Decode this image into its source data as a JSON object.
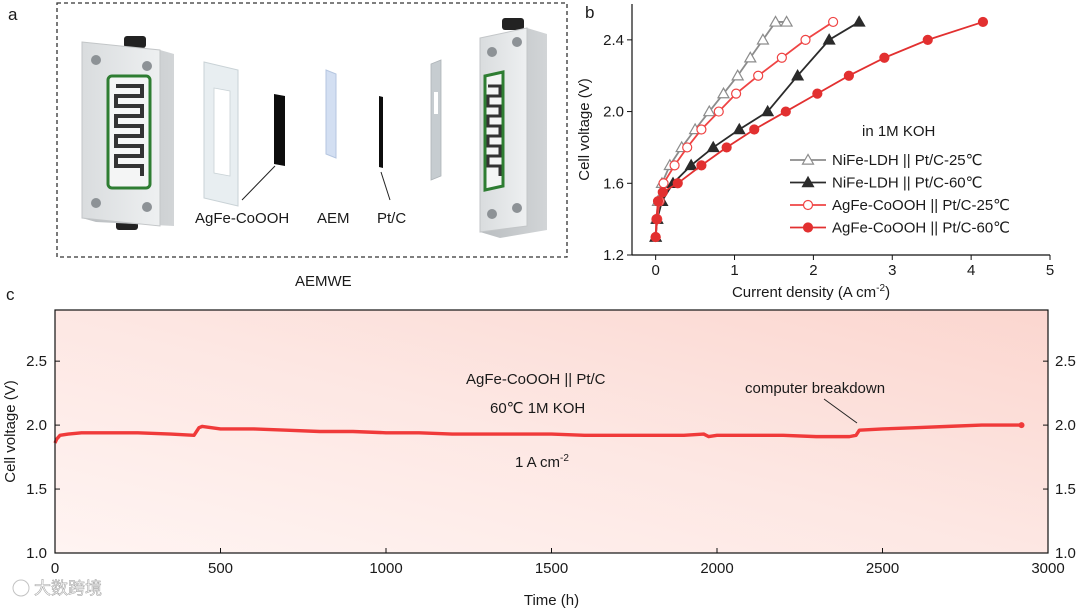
{
  "panel_a": {
    "letter": "a",
    "labels": {
      "anode": "AgFe-CoOOH",
      "membrane": "AEM",
      "cathode": "Pt/C"
    },
    "caption": "AEMWE"
  },
  "panel_b_letter": "b",
  "panel_c_letter": "c",
  "watermark": "大数跨境",
  "chart_data": [
    {
      "type": "line",
      "panel": "b",
      "title": "",
      "xlabel": "Current density (A cm⁻²)",
      "ylabel": "Cell voltage (V)",
      "xlim": [
        -0.3,
        5
      ],
      "ylim": [
        1.2,
        2.6
      ],
      "xticks": [
        "0",
        "1",
        "2",
        "3",
        "4",
        "5"
      ],
      "yticks": [
        "1.2",
        "1.6",
        "2.0",
        "2.4"
      ],
      "annotation": "in 1M KOH",
      "legend_position": "lower-right",
      "series": [
        {
          "name": "NiFe-LDH || Pt/C-25℃",
          "color": "#8c8c8c",
          "marker": "triangle-open",
          "x": [
            0.0,
            0.01,
            0.03,
            0.08,
            0.18,
            0.33,
            0.5,
            0.68,
            0.86,
            1.04,
            1.2,
            1.36,
            1.52,
            1.66
          ],
          "y": [
            1.3,
            1.4,
            1.5,
            1.6,
            1.7,
            1.8,
            1.9,
            2.0,
            2.1,
            2.2,
            2.3,
            2.4,
            2.5,
            2.5
          ]
        },
        {
          "name": "NiFe-LDH || Pt/C-60℃",
          "color": "#2b2b2b",
          "marker": "triangle-filled",
          "x": [
            0.0,
            0.02,
            0.08,
            0.22,
            0.45,
            0.73,
            1.06,
            1.42,
            1.8,
            2.2,
            2.58
          ],
          "y": [
            1.3,
            1.4,
            1.5,
            1.6,
            1.7,
            1.8,
            1.9,
            2.0,
            2.2,
            2.4,
            2.5
          ]
        },
        {
          "name": "AgFe-CoOOH || Pt/C-25℃",
          "color": "#ef4444",
          "marker": "circle-open",
          "x": [
            0.0,
            0.02,
            0.05,
            0.1,
            0.24,
            0.4,
            0.58,
            0.8,
            1.02,
            1.3,
            1.6,
            1.9,
            2.25
          ],
          "y": [
            1.3,
            1.4,
            1.5,
            1.6,
            1.7,
            1.8,
            1.9,
            2.0,
            2.1,
            2.2,
            2.3,
            2.4,
            2.5
          ]
        },
        {
          "name": "AgFe-CoOOH || Pt/C-60℃",
          "color": "#e23030",
          "marker": "circle-filled",
          "x": [
            0.0,
            0.01,
            0.03,
            0.09,
            0.28,
            0.58,
            0.9,
            1.25,
            1.65,
            2.05,
            2.45,
            2.9,
            3.45,
            4.15
          ],
          "y": [
            1.3,
            1.4,
            1.5,
            1.55,
            1.6,
            1.7,
            1.8,
            1.9,
            2.0,
            2.1,
            2.2,
            2.3,
            2.4,
            2.5
          ]
        }
      ]
    },
    {
      "type": "line",
      "panel": "c",
      "title": "",
      "xlabel": "Time (h)",
      "ylabel": "Cell voltage (V)",
      "xlim": [
        0,
        3000
      ],
      "ylim": [
        1.0,
        2.9
      ],
      "xticks": [
        "0",
        "500",
        "1000",
        "1500",
        "2000",
        "2500",
        "3000"
      ],
      "yticks": [
        "1.0",
        "1.5",
        "2.0",
        "2.5"
      ],
      "annotations": {
        "sample": "AgFe-CoOOH || Pt/C",
        "conditions": "60℃  1M KOH",
        "current": "1 A cm⁻²",
        "event": "computer breakdown"
      },
      "series": [
        {
          "name": "AgFe-CoOOH || Pt/C",
          "color": "#f03a3a",
          "x": [
            0,
            5,
            15,
            40,
            80,
            150,
            250,
            350,
            420,
            435,
            445,
            500,
            600,
            700,
            800,
            900,
            1000,
            1100,
            1200,
            1300,
            1400,
            1500,
            1600,
            1700,
            1800,
            1900,
            1960,
            1975,
            2000,
            2100,
            2200,
            2300,
            2400,
            2420,
            2430,
            2500,
            2600,
            2700,
            2800,
            2900,
            2920
          ],
          "y": [
            1.86,
            1.89,
            1.92,
            1.93,
            1.94,
            1.94,
            1.94,
            1.93,
            1.92,
            1.98,
            1.99,
            1.97,
            1.97,
            1.96,
            1.95,
            1.95,
            1.94,
            1.94,
            1.93,
            1.93,
            1.93,
            1.93,
            1.92,
            1.92,
            1.92,
            1.92,
            1.93,
            1.91,
            1.92,
            1.92,
            1.92,
            1.91,
            1.91,
            1.92,
            1.96,
            1.97,
            1.98,
            1.99,
            2.0,
            2.0,
            2.0
          ]
        }
      ]
    }
  ]
}
